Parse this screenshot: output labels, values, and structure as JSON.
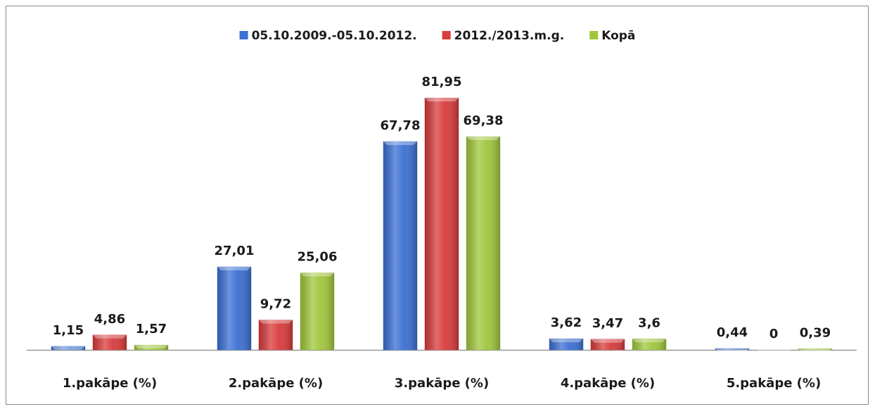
{
  "chart_data": {
    "type": "bar",
    "categories": [
      "1.pakāpe (%)",
      "2.pakāpe (%)",
      "3.pakāpe (%)",
      "4.pakāpe (%)",
      "5.pakāpe (%)"
    ],
    "series": [
      {
        "name": "05.10.2009.-05.10.2012.",
        "color": "#3b6fd3",
        "values": [
          1.15,
          27.01,
          67.78,
          3.62,
          0.44
        ],
        "value_labels": [
          "1,15",
          "27,01",
          "67,78",
          "3,62",
          "0,44"
        ]
      },
      {
        "name": "2012./2013.m.g.",
        "color": "#d83b3b",
        "values": [
          4.86,
          9.72,
          81.95,
          3.47,
          0
        ],
        "value_labels": [
          "4,86",
          "9,72",
          "81,95",
          "3,47",
          "0"
        ]
      },
      {
        "name": "Kopā",
        "color": "#a0c63c",
        "values": [
          1.57,
          25.06,
          69.38,
          3.6,
          0.39
        ],
        "value_labels": [
          "1,57",
          "25,06",
          "69,38",
          "3,6",
          "0,39"
        ]
      }
    ],
    "ylim": [
      0,
      90
    ],
    "legend": "top"
  }
}
